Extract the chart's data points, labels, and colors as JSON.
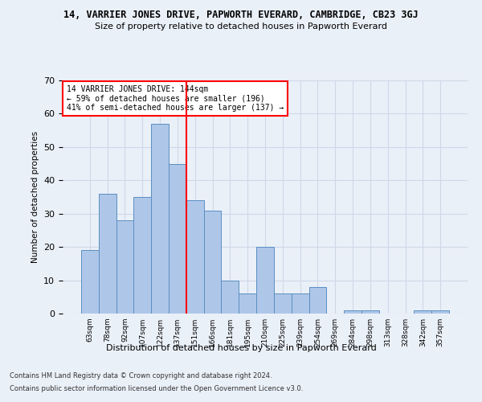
{
  "title": "14, VARRIER JONES DRIVE, PAPWORTH EVERARD, CAMBRIDGE, CB23 3GJ",
  "subtitle": "Size of property relative to detached houses in Papworth Everard",
  "xlabel": "Distribution of detached houses by size in Papworth Everard",
  "ylabel": "Number of detached properties",
  "categories": [
    "63sqm",
    "78sqm",
    "92sqm",
    "107sqm",
    "122sqm",
    "137sqm",
    "151sqm",
    "166sqm",
    "181sqm",
    "195sqm",
    "210sqm",
    "225sqm",
    "239sqm",
    "254sqm",
    "269sqm",
    "284sqm",
    "298sqm",
    "313sqm",
    "328sqm",
    "342sqm",
    "357sqm"
  ],
  "values": [
    19,
    36,
    28,
    35,
    57,
    45,
    34,
    31,
    10,
    6,
    20,
    6,
    6,
    8,
    0,
    1,
    1,
    0,
    0,
    1,
    1
  ],
  "bar_color": "#aec6e8",
  "bar_edge_color": "#5a8fc2",
  "grid_color": "#d0d8e8",
  "background_color": "#eaf0f8",
  "vline_x": 5.5,
  "vline_color": "red",
  "annotation_text": "14 VARRIER JONES DRIVE: 144sqm\n← 59% of detached houses are smaller (196)\n41% of semi-detached houses are larger (137) →",
  "annotation_box_color": "white",
  "annotation_box_edge_color": "red",
  "ylim": [
    0,
    70
  ],
  "yticks": [
    0,
    10,
    20,
    30,
    40,
    50,
    60,
    70
  ],
  "footer1": "Contains HM Land Registry data © Crown copyright and database right 2024.",
  "footer2": "Contains public sector information licensed under the Open Government Licence v3.0."
}
